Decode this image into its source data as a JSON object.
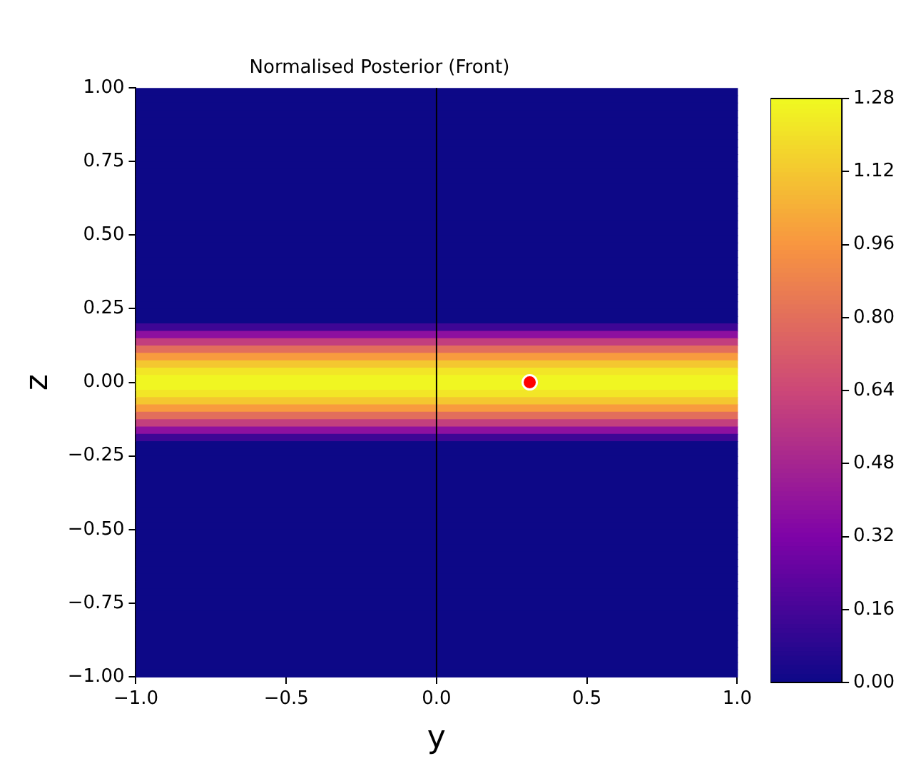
{
  "chart_data": {
    "type": "heatmap",
    "title": "Normalised Posterior (Front)",
    "xlabel": "y",
    "ylabel": "z",
    "cells": [
      [
        0
      ],
      [
        0
      ],
      [
        0
      ],
      [
        0
      ],
      [
        0
      ],
      [
        0
      ],
      [
        0
      ],
      [
        0
      ],
      [
        0
      ],
      [
        0
      ],
      [
        0
      ],
      [
        0
      ],
      [
        0
      ],
      [
        0
      ],
      [
        0
      ],
      [
        0
      ],
      [
        0
      ],
      [
        0
      ],
      [
        0
      ],
      [
        0
      ],
      [
        0
      ],
      [
        0
      ],
      [
        0
      ],
      [
        0
      ],
      [
        0
      ],
      [
        0
      ],
      [
        0
      ],
      [
        0
      ],
      [
        0
      ],
      [
        0
      ],
      [
        0
      ],
      [
        0
      ],
      [
        0.14
      ],
      [
        0.38
      ],
      [
        0.6
      ],
      [
        0.8
      ],
      [
        0.98
      ],
      [
        1.12
      ],
      [
        1.22
      ],
      [
        1.27
      ],
      [
        1.27
      ],
      [
        1.22
      ],
      [
        1.12
      ],
      [
        0.98
      ],
      [
        0.8
      ],
      [
        0.6
      ],
      [
        0.38
      ],
      [
        0.14
      ],
      [
        0
      ],
      [
        0
      ],
      [
        0
      ],
      [
        0
      ],
      [
        0
      ],
      [
        0
      ],
      [
        0
      ],
      [
        0
      ],
      [
        0
      ],
      [
        0
      ],
      [
        0
      ],
      [
        0
      ],
      [
        0
      ],
      [
        0
      ],
      [
        0
      ],
      [
        0
      ],
      [
        0
      ],
      [
        0
      ],
      [
        0
      ],
      [
        0
      ],
      [
        0
      ],
      [
        0
      ],
      [
        0
      ],
      [
        0
      ],
      [
        0
      ],
      [
        0
      ],
      [
        0
      ],
      [
        0
      ],
      [
        0
      ],
      [
        0
      ],
      [
        0
      ],
      [
        0
      ]
    ],
    "clim": [
      0,
      1.28
    ],
    "cticks": [
      {
        "value": 0,
        "label": "0.00"
      },
      0.16,
      0.32,
      0.48,
      0.64,
      {
        "value": 0.8,
        "label": "0.80"
      },
      0.96,
      1.12,
      1.28
    ],
    "xlim": [
      -1,
      1
    ],
    "ylim": [
      -1,
      1
    ],
    "xticks": [
      {
        "value": -1,
        "label": "−1.0"
      },
      {
        "value": -0.5,
        "label": "−0.5"
      },
      {
        "value": 0,
        "label": "0.0"
      },
      {
        "value": 0.5,
        "label": "0.5"
      },
      {
        "value": 1,
        "label": "1.0"
      }
    ],
    "yticks": [
      {
        "value": -1,
        "label": "−1.00"
      },
      {
        "value": -0.75,
        "label": "−0.75"
      },
      {
        "value": -0.5,
        "label": "−0.50"
      },
      {
        "value": -0.25,
        "label": "−0.25"
      },
      {
        "value": 0,
        "label": "0.00"
      },
      {
        "value": 0.25,
        "label": "0.25"
      },
      {
        "value": 0.5,
        "label": "0.50"
      },
      {
        "value": 0.75,
        "label": "0.75"
      },
      {
        "value": 1,
        "label": "1.00"
      }
    ],
    "series": [
      {
        "type": "scatter",
        "color": "#ff0000",
        "x": [
          0.31
        ],
        "values": [
          0
        ]
      }
    ],
    "marker": "circle",
    "ref_lines": [
      {
        "axis": "x",
        "value": 0,
        "color": "#000000"
      }
    ]
  }
}
